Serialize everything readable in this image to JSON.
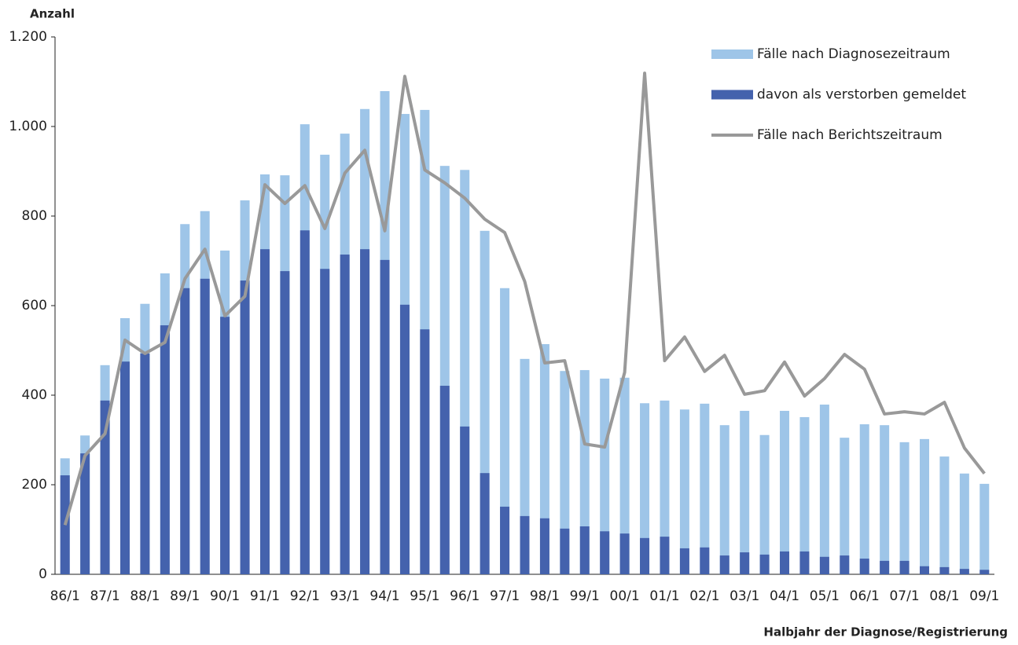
{
  "chart_data": {
    "type": "bar",
    "y_label": "Anzahl",
    "x_label": "Halbjahr der Diagnose/Registrierung",
    "categories": [
      "86/1",
      null,
      "87/1",
      null,
      "88/1",
      null,
      "89/1",
      null,
      "90/1",
      null,
      "91/1",
      null,
      "92/1",
      null,
      "93/1",
      null,
      "94/1",
      null,
      "95/1",
      null,
      "96/1",
      null,
      "97/1",
      null,
      "98/1",
      null,
      "99/1",
      null,
      "00/1",
      null,
      "01/1",
      null,
      "02/1",
      null,
      "03/1",
      null,
      "04/1",
      null,
      "05/1",
      null,
      "06/1",
      null,
      "07/1",
      null,
      "08/1",
      null,
      "09/1"
    ],
    "series": [
      {
        "name": "Fälle nach Diagnosezeitraum",
        "type": "bar",
        "color": "#9ec5e8",
        "values": [
          259,
          310,
          467,
          572,
          604,
          672,
          782,
          811,
          723,
          835,
          893,
          891,
          1005,
          937,
          984,
          1039,
          1079,
          1028,
          1037,
          912,
          903,
          767,
          639,
          481,
          514,
          454,
          456,
          437,
          439,
          382,
          388,
          368,
          381,
          333,
          365,
          311,
          365,
          351,
          379,
          305,
          335,
          333,
          295,
          302,
          263,
          225,
          202
        ]
      },
      {
        "name": "davon als verstorben gemeldet",
        "type": "bar",
        "color": "#4462ad",
        "values": [
          221,
          270,
          388,
          475,
          493,
          556,
          639,
          660,
          575,
          656,
          726,
          677,
          768,
          682,
          714,
          726,
          702,
          602,
          547,
          421,
          330,
          226,
          151,
          130,
          125,
          102,
          107,
          96,
          91,
          81,
          84,
          58,
          60,
          42,
          49,
          44,
          51,
          51,
          39,
          42,
          35,
          30,
          30,
          18,
          16,
          12,
          10
        ]
      },
      {
        "name": "Fälle nach Berichtszeitraum",
        "type": "line",
        "color": "#999999",
        "values": [
          110,
          265,
          314,
          523,
          493,
          518,
          660,
          726,
          577,
          621,
          870,
          828,
          868,
          772,
          896,
          947,
          767,
          1112,
          903,
          874,
          840,
          793,
          763,
          654,
          472,
          477,
          291,
          284,
          451,
          1119,
          477,
          530,
          453,
          489,
          402,
          410,
          474,
          398,
          437,
          491,
          458,
          358,
          363,
          358,
          384,
          282,
          225
        ]
      }
    ],
    "ylim": [
      0,
      1200
    ],
    "yticks": [
      0,
      200,
      400,
      600,
      800,
      {
        "value": 1000,
        "label": "1.000"
      },
      {
        "value": 1200,
        "label": "1.200"
      }
    ],
    "legend": "top-right"
  }
}
